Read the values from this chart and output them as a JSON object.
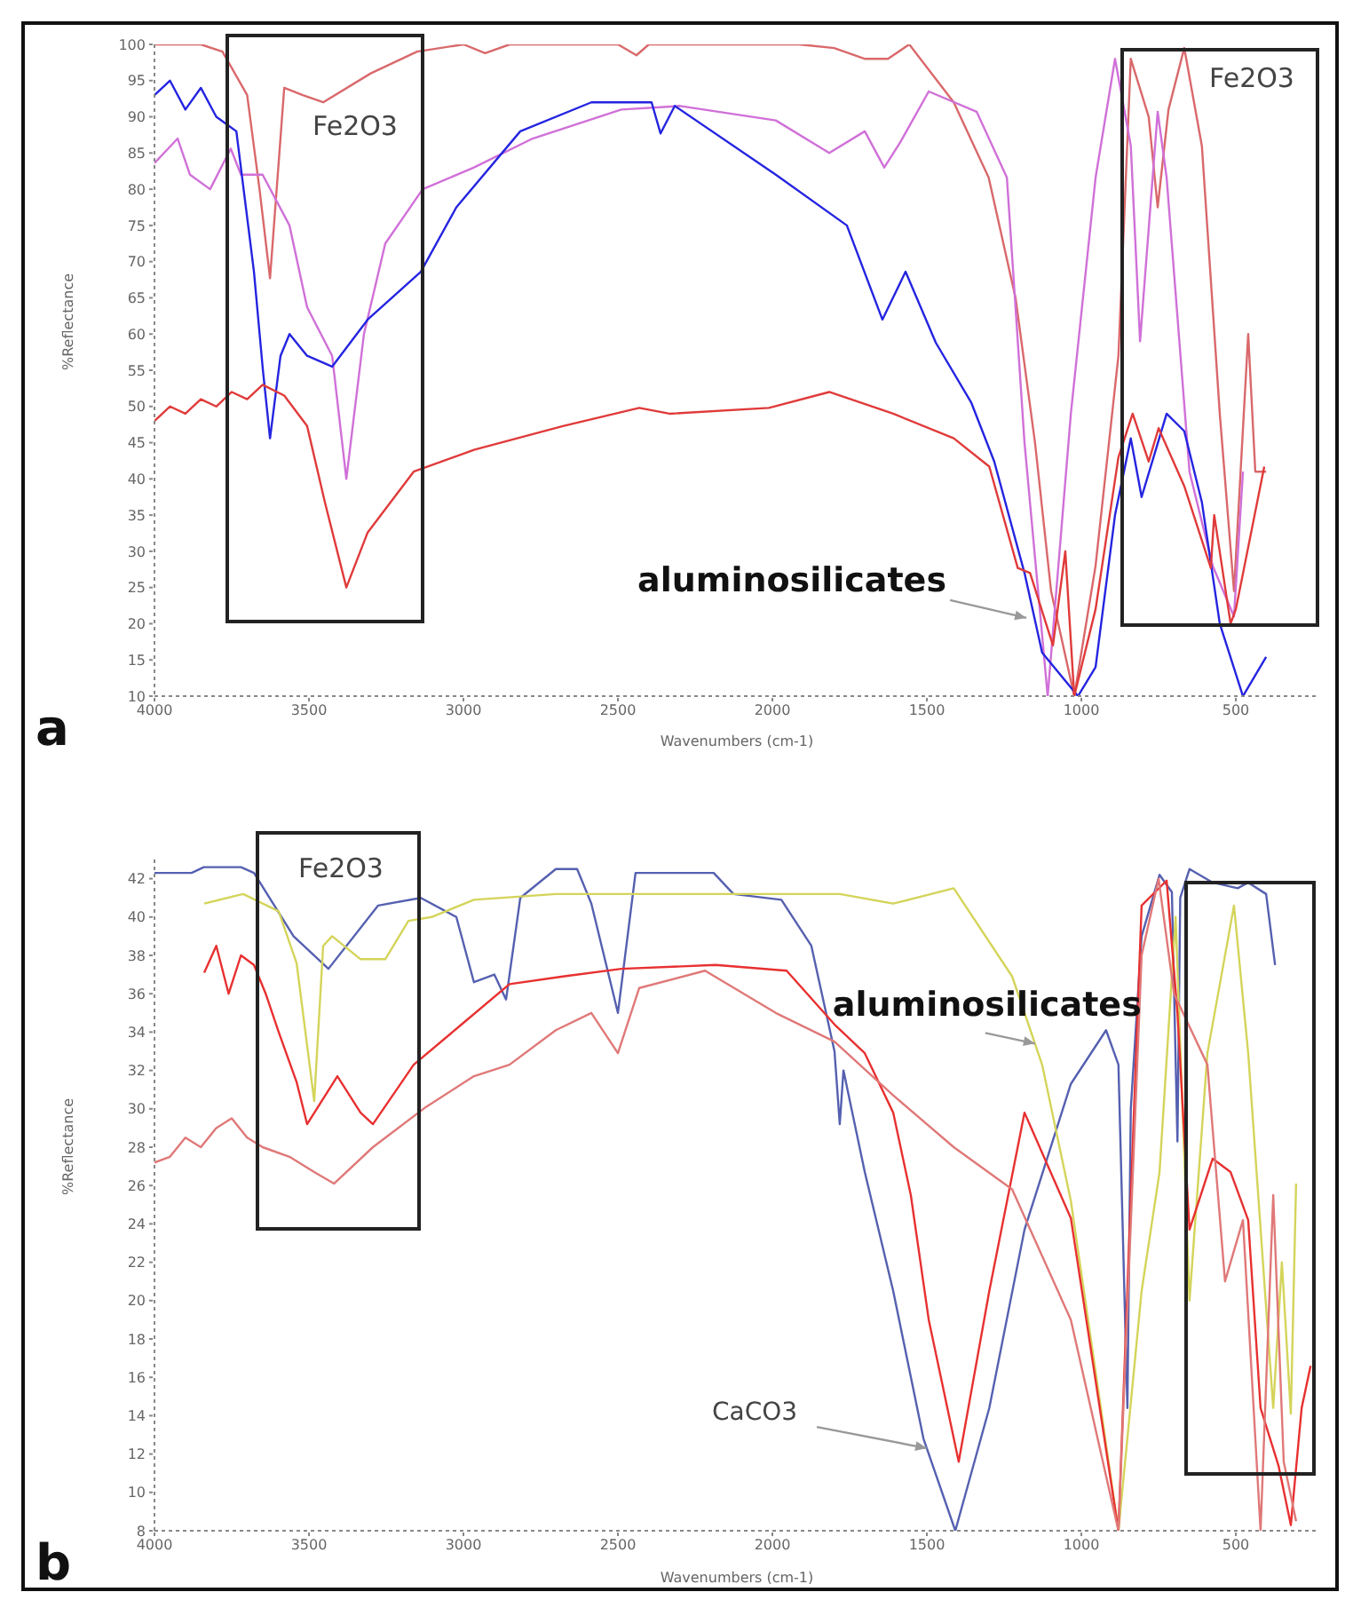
{
  "chart_data": [
    {
      "type": "line",
      "xlabel": "Wavenumbers (cm-1)",
      "ylabel": "%Reflectance",
      "xlim": [
        4000,
        230
      ],
      "xticks": [
        4000,
        3500,
        3000,
        2500,
        2000,
        1500,
        1000,
        500
      ],
      "ylim": [
        10,
        100
      ],
      "yticks": [
        10,
        15,
        20,
        25,
        30,
        35,
        40,
        45,
        50,
        55,
        60,
        65,
        70,
        75,
        80,
        85,
        90,
        95,
        100
      ],
      "series": [
        {
          "color": "#d9686b",
          "x": [
            4000,
            3850,
            3780,
            3700,
            3660,
            3626,
            3580,
            3520,
            3454,
            3300,
            3150,
            3000,
            2930,
            2850,
            2500,
            2440,
            2400,
            1914,
            1800,
            1700,
            1626,
            1557,
            1413,
            1300,
            1213,
            1150,
            1098,
            1023,
            954,
            880,
            840,
            782,
            753,
            718,
            667,
            610,
            552,
            506,
            460,
            437,
            402
          ],
          "values": [
            100,
            100,
            99,
            93,
            80,
            67.7,
            94,
            93,
            92,
            96,
            99,
            100,
            98.8,
            100,
            100,
            98.5,
            100,
            100,
            99.5,
            98,
            98,
            100,
            92,
            81.6,
            65,
            45,
            24.5,
            10,
            28,
            57,
            98,
            90,
            77.5,
            91,
            99.5,
            86,
            49,
            24.5,
            60,
            41,
            41
          ]
        },
        {
          "color": "#d070d8",
          "x": [
            4000,
            3925,
            3885,
            3820,
            3753,
            3720,
            3650,
            3563,
            3506,
            3425,
            3379,
            3322,
            3253,
            3132,
            2966,
            2776,
            2489,
            2299,
            1989,
            1816,
            1701,
            1638,
            1586,
            1494,
            1339,
            1241,
            1184,
            1109,
            1034,
            954,
            891,
            840,
            810,
            753,
            724,
            650,
            575,
            506,
            477
          ],
          "values": [
            83.6,
            87,
            82,
            80,
            85.6,
            82,
            82,
            75,
            63.7,
            57,
            40,
            60,
            72.5,
            80,
            83,
            87,
            91,
            91.5,
            89.5,
            85,
            88,
            83,
            86.5,
            93.5,
            90.7,
            81.6,
            45,
            10,
            49,
            81.6,
            98,
            86,
            59,
            90.7,
            81.6,
            41,
            28,
            21,
            41
          ]
        },
        {
          "color": "#2424e0",
          "x": [
            4000,
            3950,
            3900,
            3850,
            3800,
            3735,
            3678,
            3649,
            3626,
            3592,
            3563,
            3506,
            3425,
            3310,
            3138,
            3023,
            2816,
            2586,
            2391,
            2362,
            2316,
            1989,
            1759,
            1644,
            1569,
            1471,
            1356,
            1282,
            1184,
            1127,
            1011,
            954,
            891,
            840,
            805,
            724,
            667,
            610,
            552,
            477,
            402
          ],
          "values": [
            93,
            95,
            91,
            94,
            90,
            88,
            68.6,
            55,
            45.6,
            57,
            60,
            57,
            55.5,
            62,
            68.6,
            77.5,
            88,
            92,
            92,
            87.7,
            91.5,
            82,
            75,
            62,
            68.6,
            58.8,
            50.5,
            42.4,
            27,
            16,
            10,
            14,
            35,
            45.6,
            37.5,
            49,
            46.6,
            36.8,
            20,
            10,
            15.4
          ]
        },
        {
          "color": "#e03a3a",
          "x": [
            4000,
            3950,
            3900,
            3850,
            3800,
            3750,
            3700,
            3650,
            3580,
            3506,
            3448,
            3379,
            3310,
            3161,
            2966,
            2678,
            2431,
            2333,
            2011,
            1816,
            1609,
            1413,
            1298,
            1206,
            1166,
            1092,
            1052,
            1023,
            954,
            880,
            834,
            782,
            750,
            667,
            581,
            570,
            517,
            500,
            408
          ],
          "values": [
            48,
            50,
            49,
            51,
            50,
            52,
            51,
            53,
            51.5,
            47.3,
            36.7,
            25,
            32.6,
            41,
            44,
            47.3,
            49.8,
            49,
            49.8,
            52,
            49,
            45.6,
            41.7,
            27.7,
            27,
            17,
            30,
            10,
            22,
            43,
            49,
            42.4,
            47,
            39,
            27.7,
            35,
            20,
            22,
            41.7
          ]
        }
      ],
      "annotations": [
        "Fe2O3",
        "Fe2O3",
        {
          "text": "aluminosilicates",
          "x": 1178,
          "y": 20.8
        },
        "a"
      ]
    },
    {
      "type": "line",
      "xlabel": "Wavenumbers (cm-1)",
      "ylabel": "%Reflectance",
      "xlim": [
        4000,
        230
      ],
      "xticks": [
        4000,
        3500,
        3000,
        2500,
        2000,
        1500,
        1000,
        500
      ],
      "ylim": [
        8,
        43
      ],
      "yticks": [
        8,
        10,
        12,
        14,
        16,
        18,
        20,
        22,
        24,
        26,
        28,
        30,
        32,
        34,
        36,
        38,
        40,
        42
      ],
      "series": [
        {
          "color": "#5560b0",
          "x": [
            4000,
            3880,
            3840,
            3720,
            3678,
            3550,
            3437,
            3276,
            3138,
            3023,
            2966,
            2900,
            2862,
            2816,
            2701,
            2632,
            2586,
            2500,
            2443,
            2190,
            2126,
            1971,
            1874,
            1799,
            1782,
            1770,
            1701,
            1609,
            1511,
            1408,
            1298,
            1184,
            1034,
            920,
            880,
            851,
            840,
            805,
            747,
            707,
            689,
            680,
            650,
            575,
            494,
            460,
            402,
            373
          ],
          "values": [
            42.3,
            42.3,
            42.6,
            42.6,
            42.3,
            39,
            37.3,
            40.6,
            41,
            40,
            36.6,
            37,
            35.7,
            41,
            42.5,
            42.5,
            40.7,
            35,
            42.3,
            42.3,
            41.2,
            40.9,
            38.5,
            33,
            29.2,
            32,
            26.7,
            20.5,
            12.8,
            8,
            14.4,
            23.7,
            31.3,
            34.1,
            32.3,
            14.4,
            30,
            39,
            42.2,
            41.3,
            28.3,
            41,
            42.5,
            41.8,
            41.5,
            41.8,
            41.2,
            37.5
          ]
        },
        {
          "color": "#d4d45a",
          "x": [
            3839,
            3713,
            3598,
            3540,
            3483,
            3454,
            3425,
            3333,
            3253,
            3178,
            3103,
            2966,
            2700,
            1782,
            1609,
            1413,
            1224,
            1127,
            1034,
            937,
            880,
            805,
            747,
            695,
            650,
            592,
            506,
            460,
            379,
            351,
            322,
            305
          ],
          "values": [
            40.7,
            41.2,
            40.3,
            37.6,
            30.4,
            38.5,
            39,
            37.8,
            37.8,
            39.8,
            40,
            40.9,
            41.2,
            41.2,
            40.7,
            41.5,
            36.9,
            32.3,
            25.2,
            14.4,
            8,
            20.5,
            26.7,
            40,
            20,
            32.9,
            40.6,
            32.9,
            14.4,
            22,
            14.1,
            26.1
          ]
        },
        {
          "color": "#e83030",
          "x": [
            3839,
            3800,
            3760,
            3720,
            3678,
            3640,
            3598,
            3540,
            3506,
            3408,
            3333,
            3293,
            3161,
            3006,
            2851,
            2678,
            2489,
            2184,
            1954,
            1799,
            1701,
            1609,
            1552,
            1494,
            1397,
            1298,
            1184,
            1034,
            880,
            805,
            724,
            689,
            650,
            575,
            517,
            460,
            420,
            362,
            322,
            287,
            258
          ],
          "values": [
            37.1,
            38.5,
            36,
            38,
            37.5,
            36,
            34,
            31.4,
            29.2,
            31.7,
            29.8,
            29.2,
            32.3,
            34.4,
            36.5,
            36.9,
            37.3,
            37.5,
            37.2,
            34.4,
            32.9,
            29.8,
            25.5,
            19,
            11.6,
            20.5,
            29.8,
            24.3,
            8,
            40.6,
            41.9,
            35,
            23.7,
            27.4,
            26.7,
            24.2,
            14.4,
            11.4,
            8.3,
            14.4,
            16.6
          ]
        },
        {
          "color": "#e07878",
          "x": [
            4000,
            3950,
            3900,
            3850,
            3800,
            3750,
            3700,
            3650,
            3563,
            3483,
            3419,
            3293,
            3121,
            2966,
            2851,
            2701,
            2586,
            2500,
            2431,
            2218,
            1989,
            1799,
            1609,
            1413,
            1224,
            1034,
            880,
            805,
            750,
            700,
            592,
            535,
            477,
            420,
            379,
            345,
            305
          ],
          "values": [
            27.2,
            27.5,
            28.5,
            28,
            29,
            29.5,
            28.5,
            28,
            27.5,
            26.7,
            26.1,
            28,
            30.1,
            31.7,
            32.3,
            34.1,
            35,
            32.9,
            36.3,
            37.2,
            35,
            33.5,
            30.7,
            28,
            25.8,
            19,
            8,
            38,
            42,
            36,
            32.3,
            21,
            24.2,
            8,
            25.5,
            11.6,
            8.5
          ]
        }
      ],
      "annotations": [
        "Fe2O3",
        {
          "text": "aluminosilicates",
          "x": 1150,
          "y": 33.4
        },
        {
          "text": "CaCO3",
          "x": 1500,
          "y": 12.3
        },
        "b"
      ]
    }
  ]
}
